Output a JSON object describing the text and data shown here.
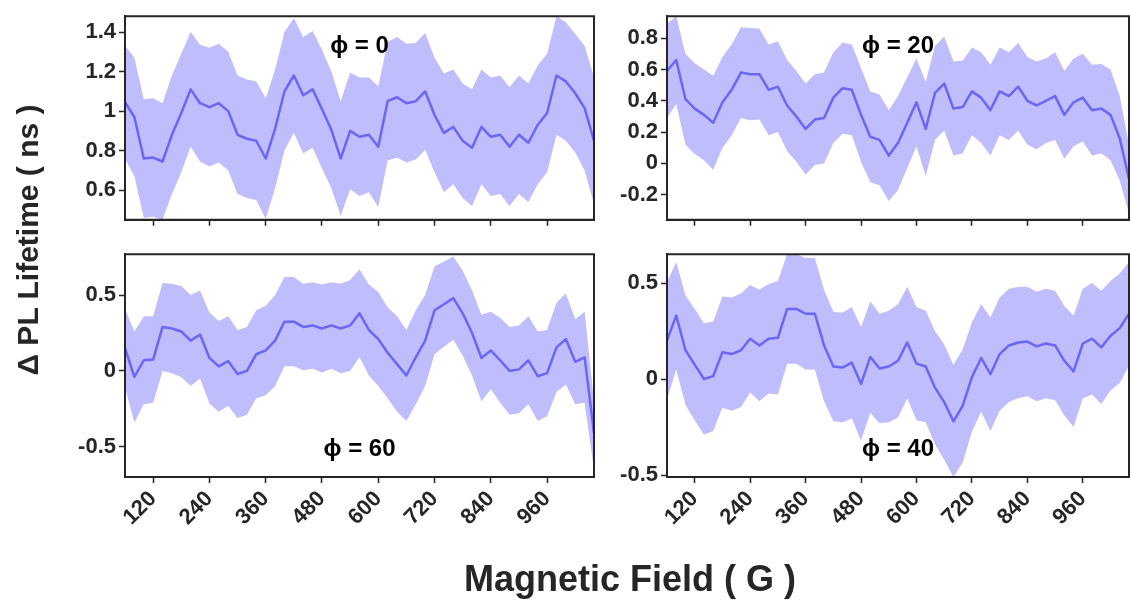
{
  "chart_data": [
    {
      "type": "line",
      "ylabel": "Δ PL Lifetime ( ns )",
      "annotations": [
        "ϕ = 0"
      ],
      "tick_labels": "y",
      "xlim": [
        60,
        1060
      ],
      "xticks": [
        120,
        240,
        360,
        480,
        600,
        720,
        840,
        960
      ],
      "ylim": [
        0.45,
        1.48
      ],
      "yticks": [
        0.6,
        0.8,
        1,
        1.2,
        1.4
      ],
      "x": [
        60,
        80,
        100,
        120,
        140,
        160,
        180,
        200,
        220,
        240,
        260,
        280,
        300,
        320,
        340,
        360,
        380,
        400,
        420,
        440,
        460,
        480,
        500,
        520,
        540,
        560,
        580,
        600,
        620,
        640,
        660,
        680,
        700,
        720,
        740,
        760,
        780,
        800,
        820,
        840,
        860,
        880,
        900,
        920,
        940,
        960,
        980,
        1000,
        1020,
        1040,
        1060
      ],
      "series": [
        {
          "color": "#6b66f5",
          "values": [
            1.045,
            0.97,
            0.76,
            0.765,
            0.745,
            0.88,
            0.99,
            1.11,
            1.04,
            1.02,
            1.04,
            1.0,
            0.88,
            0.86,
            0.85,
            0.76,
            0.91,
            1.1,
            1.18,
            1.08,
            1.11,
            1.01,
            0.905,
            0.76,
            0.9,
            0.87,
            0.88,
            0.82,
            1.05,
            1.07,
            1.04,
            1.05,
            1.1,
            0.98,
            0.89,
            0.92,
            0.85,
            0.815,
            0.92,
            0.87,
            0.88,
            0.82,
            0.88,
            0.84,
            0.93,
            0.99,
            1.18,
            1.15,
            1.09,
            1.015,
            0.85
          ],
          "upper": [
            1.33,
            1.27,
            1.06,
            1.065,
            1.04,
            1.18,
            1.29,
            1.4,
            1.335,
            1.32,
            1.34,
            1.3,
            1.18,
            1.16,
            1.15,
            1.065,
            1.21,
            1.4,
            1.47,
            1.375,
            1.405,
            1.31,
            1.2,
            1.05,
            1.195,
            1.17,
            1.17,
            1.125,
            1.35,
            1.375,
            1.34,
            1.345,
            1.395,
            1.27,
            1.19,
            1.21,
            1.14,
            1.11,
            1.21,
            1.17,
            1.18,
            1.12,
            1.18,
            1.14,
            1.23,
            1.29,
            1.48,
            1.45,
            1.39,
            1.33,
            1.17
          ],
          "lower": [
            0.76,
            0.67,
            0.46,
            0.465,
            0.45,
            0.58,
            0.69,
            0.82,
            0.745,
            0.72,
            0.74,
            0.7,
            0.58,
            0.56,
            0.55,
            0.455,
            0.61,
            0.8,
            0.89,
            0.785,
            0.815,
            0.71,
            0.61,
            0.47,
            0.605,
            0.57,
            0.59,
            0.515,
            0.75,
            0.765,
            0.74,
            0.755,
            0.805,
            0.69,
            0.59,
            0.63,
            0.56,
            0.52,
            0.63,
            0.57,
            0.58,
            0.52,
            0.58,
            0.54,
            0.63,
            0.69,
            0.88,
            0.85,
            0.79,
            0.7,
            0.53
          ]
        }
      ]
    },
    {
      "type": "line",
      "annotations": [
        "ϕ = 20"
      ],
      "tick_labels": "y",
      "xlim": [
        60,
        1060
      ],
      "xticks": [
        120,
        240,
        360,
        480,
        600,
        720,
        840,
        960
      ],
      "ylim": [
        -0.36,
        0.94
      ],
      "yticks": [
        -0.2,
        0,
        0.2,
        0.4,
        0.6,
        0.8
      ],
      "x": [
        60,
        80,
        100,
        120,
        140,
        160,
        180,
        200,
        220,
        240,
        260,
        280,
        300,
        320,
        340,
        360,
        380,
        400,
        420,
        440,
        460,
        480,
        500,
        520,
        540,
        560,
        580,
        600,
        620,
        640,
        660,
        680,
        700,
        720,
        740,
        760,
        780,
        800,
        820,
        840,
        860,
        880,
        900,
        920,
        940,
        960,
        980,
        1000,
        1020,
        1040,
        1060
      ],
      "series": [
        {
          "color": "#6b66f5",
          "values": [
            0.59,
            0.66,
            0.41,
            0.35,
            0.31,
            0.26,
            0.39,
            0.47,
            0.58,
            0.57,
            0.57,
            0.47,
            0.49,
            0.37,
            0.3,
            0.22,
            0.28,
            0.29,
            0.42,
            0.48,
            0.47,
            0.31,
            0.17,
            0.15,
            0.05,
            0.13,
            0.26,
            0.39,
            0.22,
            0.45,
            0.51,
            0.35,
            0.36,
            0.46,
            0.42,
            0.34,
            0.46,
            0.43,
            0.49,
            0.4,
            0.37,
            0.4,
            0.43,
            0.31,
            0.39,
            0.42,
            0.34,
            0.35,
            0.31,
            0.16,
            -0.1
          ],
          "upper": [
            0.89,
            0.94,
            0.7,
            0.64,
            0.6,
            0.56,
            0.68,
            0.76,
            0.87,
            0.865,
            0.86,
            0.76,
            0.78,
            0.66,
            0.59,
            0.51,
            0.57,
            0.58,
            0.71,
            0.77,
            0.76,
            0.61,
            0.46,
            0.44,
            0.34,
            0.43,
            0.55,
            0.67,
            0.52,
            0.75,
            0.81,
            0.65,
            0.655,
            0.74,
            0.71,
            0.63,
            0.74,
            0.71,
            0.77,
            0.68,
            0.65,
            0.67,
            0.71,
            0.59,
            0.67,
            0.7,
            0.63,
            0.635,
            0.6,
            0.43,
            0.12
          ],
          "lower": [
            0.29,
            0.38,
            0.12,
            0.06,
            0.02,
            -0.04,
            0.1,
            0.18,
            0.29,
            0.275,
            0.28,
            0.18,
            0.2,
            0.08,
            0.01,
            -0.07,
            -0.01,
            0,
            0.13,
            0.19,
            0.18,
            0.01,
            -0.12,
            -0.14,
            -0.24,
            -0.17,
            -0.03,
            0.11,
            -0.08,
            0.15,
            0.21,
            0.05,
            0.065,
            0.18,
            0.13,
            0.05,
            0.18,
            0.15,
            0.21,
            0.12,
            0.09,
            0.13,
            0.15,
            0.03,
            0.11,
            0.14,
            0.05,
            0.065,
            0.02,
            -0.11,
            -0.32
          ]
        }
      ]
    },
    {
      "type": "line",
      "annotations": [
        "ϕ = 60"
      ],
      "xlim": [
        60,
        1060
      ],
      "xticks": [
        120,
        240,
        360,
        480,
        600,
        720,
        840,
        960
      ],
      "ylim": [
        -0.7,
        0.77
      ],
      "yticks": [
        -0.5,
        0,
        0.5
      ],
      "x": [
        60,
        80,
        100,
        120,
        140,
        160,
        180,
        200,
        220,
        240,
        260,
        280,
        300,
        320,
        340,
        360,
        380,
        400,
        420,
        440,
        460,
        480,
        500,
        520,
        540,
        560,
        580,
        600,
        620,
        640,
        660,
        680,
        700,
        720,
        740,
        760,
        780,
        800,
        820,
        840,
        860,
        880,
        900,
        920,
        940,
        960,
        980,
        1000,
        1020,
        1040,
        1060
      ],
      "series": [
        {
          "color": "#6b66f5",
          "values": [
            0.15,
            -0.04,
            0.07,
            0.075,
            0.29,
            0.28,
            0.26,
            0.2,
            0.24,
            0.085,
            0.03,
            0.065,
            -0.02,
            0,
            0.11,
            0.135,
            0.2,
            0.325,
            0.325,
            0.29,
            0.3,
            0.28,
            0.3,
            0.28,
            0.3,
            0.38,
            0.27,
            0.21,
            0.12,
            0.045,
            -0.03,
            0.09,
            0.2,
            0.4,
            0.44,
            0.48,
            0.38,
            0.25,
            0.085,
            0.135,
            0.07,
            0,
            0.01,
            0.07,
            -0.035,
            -0.015,
            0.155,
            0.21,
            0.06,
            0.09,
            -0.41
          ],
          "upper": [
            0.41,
            0.26,
            0.36,
            0.36,
            0.58,
            0.575,
            0.56,
            0.5,
            0.53,
            0.385,
            0.33,
            0.36,
            0.27,
            0.29,
            0.4,
            0.43,
            0.5,
            0.62,
            0.62,
            0.575,
            0.585,
            0.57,
            0.585,
            0.575,
            0.6,
            0.67,
            0.57,
            0.52,
            0.42,
            0.36,
            0.27,
            0.4,
            0.5,
            0.69,
            0.72,
            0.755,
            0.66,
            0.53,
            0.37,
            0.39,
            0.35,
            0.29,
            0.3,
            0.36,
            0.26,
            0.27,
            0.45,
            0.51,
            0.34,
            0.39,
            -0.2
          ],
          "lower": [
            -0.11,
            -0.34,
            -0.22,
            -0.21,
            0,
            -0.015,
            -0.04,
            -0.1,
            -0.05,
            -0.215,
            -0.27,
            -0.23,
            -0.31,
            -0.29,
            -0.18,
            -0.16,
            -0.1,
            0.03,
            0.03,
            0.005,
            0.015,
            -0.01,
            0.015,
            -0.015,
            0,
            0.09,
            -0.03,
            -0.1,
            -0.18,
            -0.27,
            -0.33,
            -0.22,
            -0.1,
            0.11,
            0.16,
            0.205,
            0.1,
            -0.03,
            -0.2,
            -0.12,
            -0.21,
            -0.29,
            -0.28,
            -0.22,
            -0.33,
            -0.3,
            -0.14,
            -0.09,
            -0.22,
            -0.21,
            -0.65
          ]
        }
      ]
    },
    {
      "type": "line",
      "xlabel": "Magnetic Field ( G )",
      "annotations": [
        "ϕ = 40"
      ],
      "xlim": [
        60,
        1060
      ],
      "xticks": [
        120,
        240,
        360,
        480,
        600,
        720,
        840,
        960
      ],
      "ylim": [
        -0.51,
        0.65
      ],
      "yticks": [
        -0.5,
        0,
        0.5
      ],
      "x": [
        60,
        80,
        100,
        120,
        140,
        160,
        180,
        200,
        220,
        240,
        260,
        280,
        300,
        320,
        340,
        360,
        380,
        400,
        420,
        440,
        460,
        480,
        500,
        520,
        540,
        560,
        580,
        600,
        620,
        640,
        660,
        680,
        700,
        720,
        740,
        760,
        780,
        800,
        820,
        840,
        860,
        880,
        900,
        920,
        940,
        960,
        980,
        1000,
        1020,
        1040,
        1060
      ],
      "series": [
        {
          "color": "#6b66f5",
          "values": [
            0.2,
            0.33,
            0.15,
            0.075,
            0,
            0.015,
            0.14,
            0.13,
            0.15,
            0.21,
            0.175,
            0.21,
            0.215,
            0.365,
            0.365,
            0.34,
            0.34,
            0.175,
            0.065,
            0.06,
            0.085,
            -0.025,
            0.115,
            0.055,
            0.065,
            0.095,
            0.19,
            0.08,
            0.065,
            -0.045,
            -0.12,
            -0.22,
            -0.14,
            0.01,
            0.11,
            0.025,
            0.13,
            0.175,
            0.19,
            0.195,
            0.17,
            0.185,
            0.175,
            0.095,
            0.04,
            0.185,
            0.21,
            0.165,
            0.225,
            0.265,
            0.34
          ],
          "upper": [
            0.505,
            0.61,
            0.435,
            0.365,
            0.29,
            0.3,
            0.43,
            0.425,
            0.445,
            0.49,
            0.465,
            0.495,
            0.51,
            0.65,
            0.65,
            0.63,
            0.63,
            0.465,
            0.35,
            0.345,
            0.375,
            0.27,
            0.405,
            0.34,
            0.355,
            0.39,
            0.48,
            0.375,
            0.355,
            0.25,
            0.18,
            0.075,
            0.155,
            0.295,
            0.39,
            0.32,
            0.425,
            0.47,
            0.48,
            0.48,
            0.455,
            0.47,
            0.46,
            0.38,
            0.33,
            0.47,
            0.5,
            0.46,
            0.51,
            0.55,
            0.61
          ],
          "lower": [
            -0.105,
            0.05,
            -0.135,
            -0.215,
            -0.29,
            -0.27,
            -0.15,
            -0.165,
            -0.145,
            -0.07,
            -0.115,
            -0.075,
            -0.08,
            0.08,
            0.08,
            0.05,
            0.05,
            -0.115,
            -0.22,
            -0.225,
            -0.205,
            -0.32,
            -0.175,
            -0.23,
            -0.225,
            -0.2,
            -0.1,
            -0.215,
            -0.225,
            -0.34,
            -0.42,
            -0.51,
            -0.435,
            -0.275,
            -0.17,
            -0.27,
            -0.165,
            -0.12,
            -0.1,
            -0.09,
            -0.115,
            -0.1,
            -0.11,
            -0.19,
            -0.25,
            -0.1,
            -0.08,
            -0.13,
            -0.06,
            -0.02,
            0.07
          ]
        }
      ]
    }
  ]
}
